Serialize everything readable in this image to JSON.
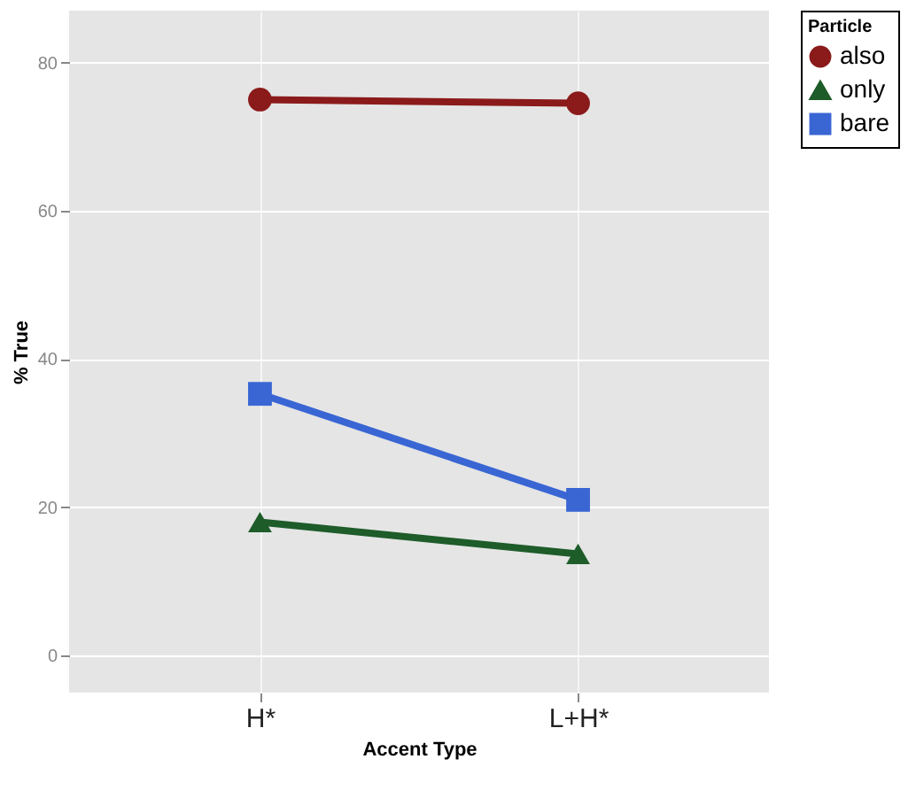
{
  "chart_data": {
    "type": "line",
    "xlabel": "Accent Type",
    "ylabel": "% True",
    "legend_title": "Particle",
    "categories": [
      "H*",
      "L+H*"
    ],
    "series": [
      {
        "name": "also",
        "color": "#8b1a1a",
        "marker": "circle",
        "values": [
          75,
          74.5
        ]
      },
      {
        "name": "only",
        "color": "#1e5c2a",
        "marker": "triangle",
        "values": [
          18,
          13.7
        ]
      },
      {
        "name": "bare",
        "color": "#3a66d4",
        "marker": "square",
        "values": [
          35.3,
          21
        ]
      }
    ],
    "ylim": [
      -5,
      87
    ],
    "yticks": [
      0,
      20,
      40,
      60,
      80
    ],
    "grid": true,
    "legend": "right"
  }
}
